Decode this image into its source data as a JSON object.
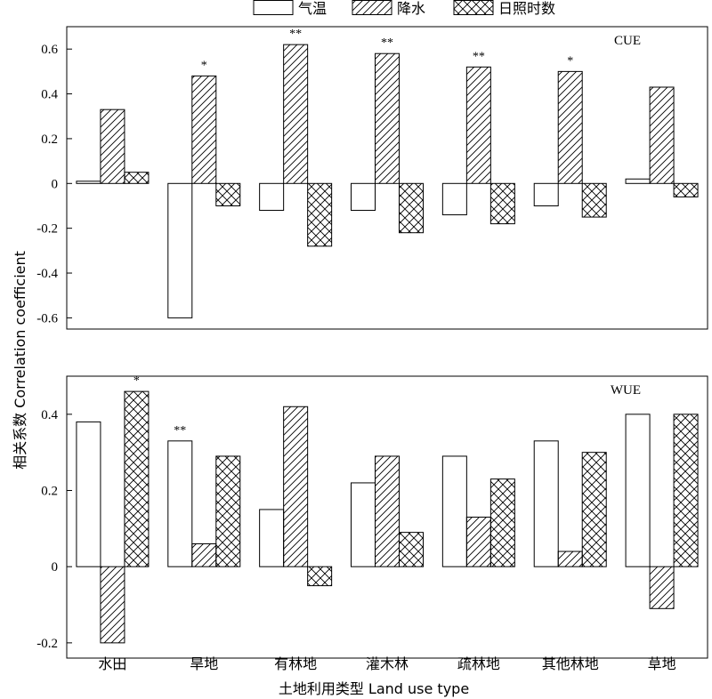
{
  "chart_data": {
    "type": "bar",
    "categories": [
      "水田",
      "旱地",
      "有林地",
      "灌木林",
      "疏林地",
      "其他林地",
      "草地"
    ],
    "legend": [
      {
        "name": "气温",
        "pattern": "none"
      },
      {
        "name": "降水",
        "pattern": "diagonal"
      },
      {
        "name": "日照时数",
        "pattern": "crosshatch"
      }
    ],
    "xlabel": "土地利用类型  Land use type",
    "ylabel": "相关系数 Correlation coefficient",
    "panels": [
      {
        "label": "CUE",
        "ylim": [
          -0.65,
          0.7
        ],
        "ticks": [
          -0.6,
          -0.4,
          -0.2,
          0,
          0.2,
          0.4,
          0.6
        ],
        "tick_labels": [
          "-0.6",
          "-0.4",
          "-0.2",
          "0",
          "0.2",
          "0.4",
          "0.6"
        ],
        "series": [
          {
            "name": "气温",
            "values": [
              0.01,
              -0.6,
              -0.12,
              -0.12,
              -0.14,
              -0.1,
              0.02
            ]
          },
          {
            "name": "降水",
            "values": [
              0.33,
              0.48,
              0.62,
              0.58,
              0.52,
              0.5,
              0.43
            ]
          },
          {
            "name": "日照时数",
            "values": [
              0.05,
              -0.1,
              -0.28,
              -0.22,
              -0.18,
              -0.15,
              -0.06
            ]
          }
        ],
        "annotations": [
          {
            "category": "旱地",
            "series": "降水",
            "text": "*"
          },
          {
            "category": "有林地",
            "series": "降水",
            "text": "**"
          },
          {
            "category": "灌木林",
            "series": "降水",
            "text": "**"
          },
          {
            "category": "疏林地",
            "series": "降水",
            "text": "**"
          },
          {
            "category": "其他林地",
            "series": "降水",
            "text": "*"
          }
        ]
      },
      {
        "label": "WUE",
        "ylim": [
          -0.24,
          0.5
        ],
        "ticks": [
          -0.2,
          0,
          0.2,
          0.4
        ],
        "tick_labels": [
          "-0.2",
          "0",
          "0.2",
          "0.4"
        ],
        "series": [
          {
            "name": "气温",
            "values": [
              0.38,
              0.33,
              0.15,
              0.22,
              0.29,
              0.33,
              0.4
            ]
          },
          {
            "name": "降水",
            "values": [
              -0.2,
              0.06,
              0.42,
              0.29,
              0.13,
              0.04,
              -0.11
            ]
          },
          {
            "name": "日照时数",
            "values": [
              0.46,
              0.29,
              -0.05,
              0.09,
              0.23,
              0.3,
              0.4
            ]
          }
        ],
        "annotations": [
          {
            "category": "水田",
            "series": "日照时数",
            "text": "*"
          },
          {
            "category": "旱地",
            "series": "气温",
            "text": "**"
          }
        ]
      }
    ]
  }
}
